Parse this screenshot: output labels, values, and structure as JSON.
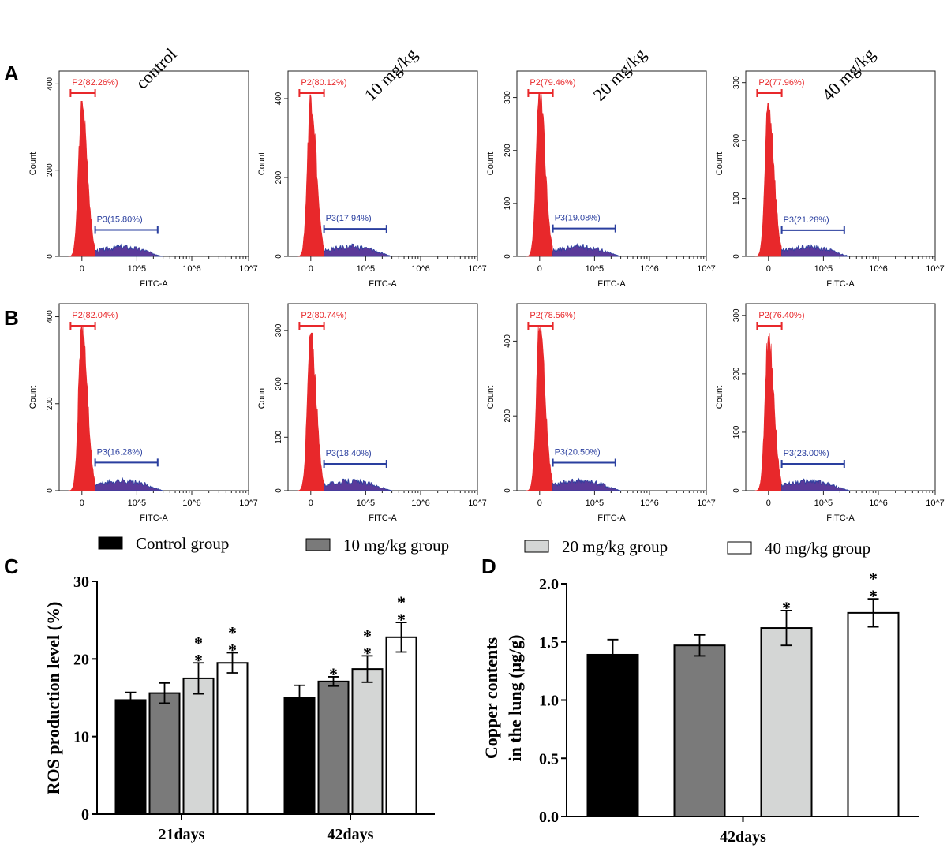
{
  "panel_letters": [
    "A",
    "B",
    "C",
    "D"
  ],
  "column_headers": [
    "control",
    "10 mg/kg",
    "20 mg/kg",
    "40 mg/kg"
  ],
  "colors": {
    "p2": "#e8282b",
    "p3": "#2a3f9f",
    "p3_fill": "#5a3a9a",
    "bar_control": "#000000",
    "bar_10": "#7a7a7a",
    "bar_20": "#d4d6d5",
    "bar_40": "#ffffff"
  },
  "histogram_axis": {
    "xlabel": "FITC-A",
    "ylabel": "Count",
    "xticks": [
      "0",
      "10^5",
      "10^6",
      "10^7"
    ]
  },
  "chart_data": [
    {
      "type": "histogram",
      "row": "A",
      "column": "control",
      "ylim": [
        0,
        430
      ],
      "yticks": [
        0,
        200,
        400
      ],
      "peak_count": 360,
      "gates": [
        {
          "name": "P2",
          "label": "P2(82.26%)",
          "percent": 82.26
        },
        {
          "name": "P3",
          "label": "P3(15.80%)",
          "percent": 15.8
        }
      ]
    },
    {
      "type": "histogram",
      "row": "A",
      "column": "10 mg/kg",
      "ylim": [
        0,
        470
      ],
      "yticks": [
        0,
        200,
        400
      ],
      "peak_count": 410,
      "gates": [
        {
          "name": "P2",
          "label": "P2(80.12%)",
          "percent": 80.12
        },
        {
          "name": "P3",
          "label": "P3(17.94%)",
          "percent": 17.94
        }
      ]
    },
    {
      "type": "histogram",
      "row": "A",
      "column": "20 mg/kg",
      "ylim": [
        0,
        350
      ],
      "yticks": [
        0,
        100,
        200,
        300
      ],
      "peak_count": 310,
      "gates": [
        {
          "name": "P2",
          "label": "P2(79.46%)",
          "percent": 79.46
        },
        {
          "name": "P3",
          "label": "P3(19.08%)",
          "percent": 19.08
        }
      ]
    },
    {
      "type": "histogram",
      "row": "A",
      "column": "40 mg/kg",
      "ylim": [
        0,
        320
      ],
      "yticks": [
        0,
        100,
        200,
        300
      ],
      "peak_count": 265,
      "gates": [
        {
          "name": "P2",
          "label": "P2(77.96%)",
          "percent": 77.96
        },
        {
          "name": "P3",
          "label": "P3(21.28%)",
          "percent": 21.28
        }
      ]
    },
    {
      "type": "histogram",
      "row": "B",
      "column": "control",
      "ylim": [
        0,
        430
      ],
      "yticks": [
        0,
        200,
        400
      ],
      "peak_count": 380,
      "gates": [
        {
          "name": "P2",
          "label": "P2(82.04%)",
          "percent": 82.04
        },
        {
          "name": "P3",
          "label": "P3(16.28%)",
          "percent": 16.28
        }
      ]
    },
    {
      "type": "histogram",
      "row": "B",
      "column": "10 mg/kg",
      "ylim": [
        0,
        350
      ],
      "yticks": [
        0,
        100,
        200,
        300
      ],
      "peak_count": 295,
      "gates": [
        {
          "name": "P2",
          "label": "P2(80.74%)",
          "percent": 80.74
        },
        {
          "name": "P3",
          "label": "P3(18.40%)",
          "percent": 18.4
        }
      ]
    },
    {
      "type": "histogram",
      "row": "B",
      "column": "20 mg/kg",
      "ylim": [
        0,
        500
      ],
      "yticks": [
        0,
        200,
        400
      ],
      "peak_count": 440,
      "gates": [
        {
          "name": "P2",
          "label": "P2(78.56%)",
          "percent": 78.56
        },
        {
          "name": "P3",
          "label": "P3(20.50%)",
          "percent": 20.5
        }
      ]
    },
    {
      "type": "histogram",
      "row": "B",
      "column": "40 mg/kg",
      "ylim": [
        0,
        320
      ],
      "yticks": [
        0,
        100,
        200,
        300
      ],
      "peak_count": 270,
      "gates": [
        {
          "name": "P2",
          "label": "P2(76.40%)",
          "percent": 76.4
        },
        {
          "name": "P3",
          "label": "P3(23.00%)",
          "percent": 23.0
        }
      ]
    },
    {
      "type": "bar",
      "panel": "C",
      "ylabel": "ROS production level (%)",
      "ylim": [
        0,
        30
      ],
      "yticks": [
        0,
        10,
        20,
        30
      ],
      "categories": [
        "21days",
        "42days"
      ],
      "series": [
        {
          "name": "Control group",
          "values": [
            14.7,
            15.0
          ],
          "errors": [
            1.0,
            1.6
          ],
          "significance": [
            "",
            ""
          ]
        },
        {
          "name": "10 mg/kg group",
          "values": [
            15.6,
            17.1
          ],
          "errors": [
            1.3,
            0.6
          ],
          "significance": [
            "",
            "*"
          ]
        },
        {
          "name": "20 mg/kg group",
          "values": [
            17.5,
            18.7
          ],
          "errors": [
            2.0,
            1.7
          ],
          "significance": [
            "**",
            "**"
          ]
        },
        {
          "name": "40 mg/kg group",
          "values": [
            19.5,
            22.8
          ],
          "errors": [
            1.3,
            1.9
          ],
          "significance": [
            "**",
            "**"
          ]
        }
      ]
    },
    {
      "type": "bar",
      "panel": "D",
      "ylabel": "Copper contents in the lung (μg/g)",
      "ylabel_lines": [
        "Copper contents",
        "in the lung (μg/g)"
      ],
      "ylim": [
        0,
        2.0
      ],
      "yticks": [
        "0.0",
        "0.5",
        "1.0",
        "1.5",
        "2.0"
      ],
      "categories": [
        "42days"
      ],
      "series": [
        {
          "name": "Control group",
          "values": [
            1.39
          ],
          "errors": [
            0.13
          ],
          "significance": [
            ""
          ]
        },
        {
          "name": "10 mg/kg group",
          "values": [
            1.47
          ],
          "errors": [
            0.09
          ],
          "significance": [
            ""
          ]
        },
        {
          "name": "20 mg/kg group",
          "values": [
            1.62
          ],
          "errors": [
            0.15
          ],
          "significance": [
            "*"
          ]
        },
        {
          "name": "40 mg/kg group",
          "values": [
            1.75
          ],
          "errors": [
            0.12
          ],
          "significance": [
            "**"
          ]
        }
      ]
    }
  ],
  "legend": [
    "Control group",
    "10 mg/kg group",
    "20 mg/kg group",
    "40 mg/kg group"
  ]
}
